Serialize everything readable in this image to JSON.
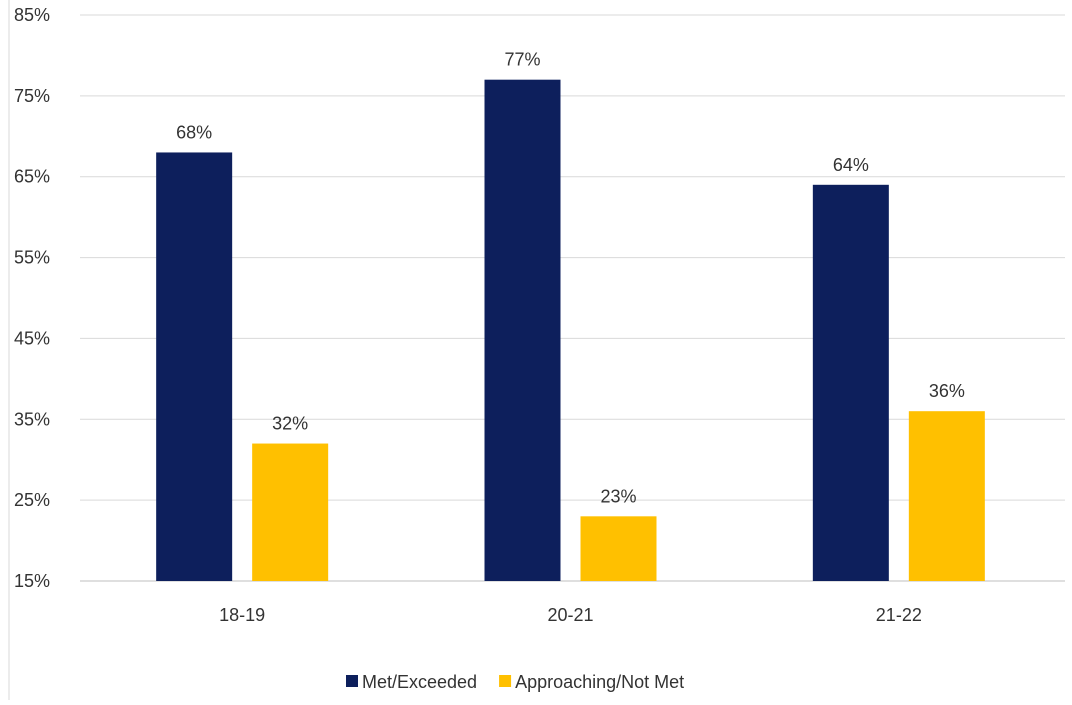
{
  "chart_data": {
    "type": "bar",
    "categories": [
      "18-19",
      "20-21",
      "21-22"
    ],
    "series": [
      {
        "name": "Met/Exceeded",
        "values": [
          68,
          77,
          64
        ],
        "labels": [
          "68%",
          "77%",
          "64%"
        ],
        "color": "#0d1f5c"
      },
      {
        "name": "Approaching/Not Met",
        "values": [
          32,
          23,
          36
        ],
        "labels": [
          "32%",
          "23%",
          "36%"
        ],
        "color": "#ffc000"
      }
    ],
    "ylim": [
      15,
      85
    ],
    "yticks": [
      15,
      25,
      35,
      45,
      55,
      65,
      75,
      85
    ],
    "ytick_labels": [
      "15%",
      "25%",
      "35%",
      "45%",
      "55%",
      "65%",
      "75%",
      "85%"
    ],
    "grid": true,
    "legend_position": "bottom"
  }
}
